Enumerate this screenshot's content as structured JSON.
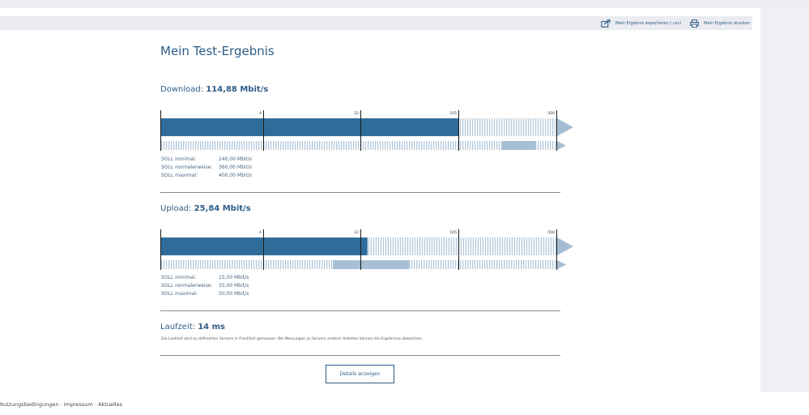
{
  "toolbar": {
    "export_label": "Mein Ergebnis exportieren (.csv)",
    "print_label": "Mein Ergebnis drucken"
  },
  "page_title": "Mein Test-Ergebnis",
  "ticks": [
    "4",
    "22",
    "105",
    "500"
  ],
  "download": {
    "label": "Download:",
    "value": "114,88 Mbit/s",
    "measured_fraction": 0.753,
    "soll_fill_fraction": 0.945,
    "soll": [
      {
        "label": "SOLL minimal:",
        "value": "240,00 Mbit/s"
      },
      {
        "label": "SOLL normalerweise:",
        "value": "360,00 Mbit/s"
      },
      {
        "label": "SOLL maximal:",
        "value": "400,00 Mbit/s"
      }
    ]
  },
  "upload": {
    "label": "Upload:",
    "value": "25,84 Mbit/s",
    "measured_fraction": 0.522,
    "soll_fill_fraction": 0.627,
    "soll": [
      {
        "label": "SOLL minimal:",
        "value": "15,00 Mbit/s"
      },
      {
        "label": "SOLL normalerweise:",
        "value": "35,00 Mbit/s"
      },
      {
        "label": "SOLL maximal:",
        "value": "50,00 Mbit/s"
      }
    ]
  },
  "latency": {
    "label": "Laufzeit:",
    "value": "14 ms",
    "note": "Die Laufzeit wird zu definierten Servern in Frankfurt gemessen. Bei Messungen zu Servern anderer Anbieter können die Ergebnisse abweichen."
  },
  "details_button": "Details anzeigen",
  "footer": {
    "links": [
      "Nutzungsbedingungen",
      "Impressum",
      "Aktuelles"
    ],
    "separator": "·"
  },
  "colors": {
    "bar_dark": "#2f6c9a",
    "bar_light": "#a6bfd4",
    "stripe": "#b3c8da",
    "arrow": "#a4bdd3"
  }
}
